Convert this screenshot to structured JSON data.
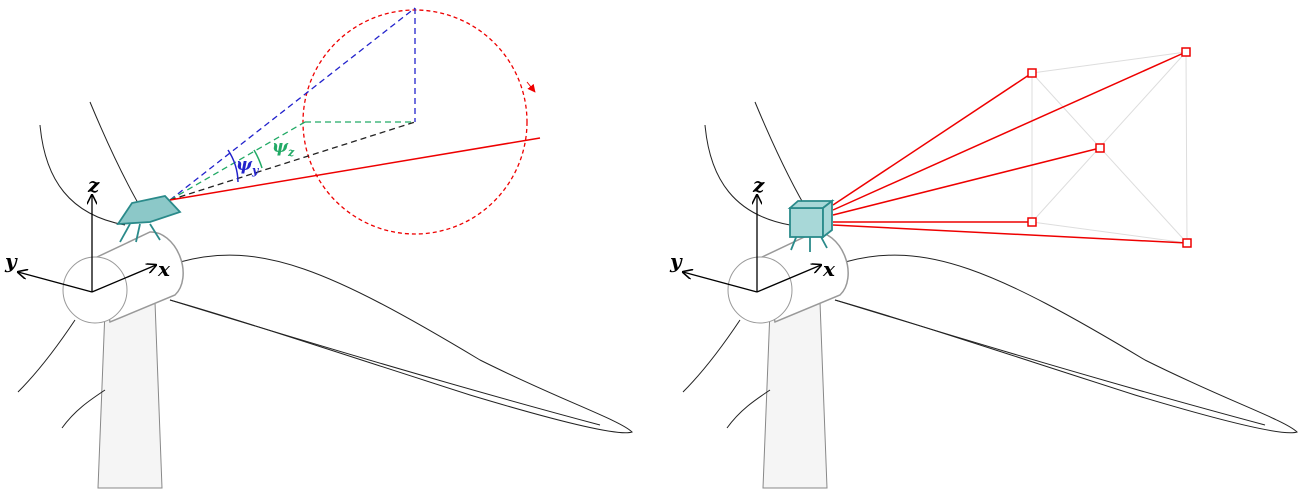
{
  "left": {
    "axes": {
      "z": "z",
      "y": "y",
      "x": "x"
    },
    "angles": {
      "psi_y": {
        "symbol": "ψ",
        "subscript": "y"
      },
      "psi_z": {
        "symbol": "ψ",
        "subscript": "z"
      }
    }
  },
  "right": {
    "axes": {
      "z": "z",
      "y": "y",
      "x": "x"
    }
  }
}
